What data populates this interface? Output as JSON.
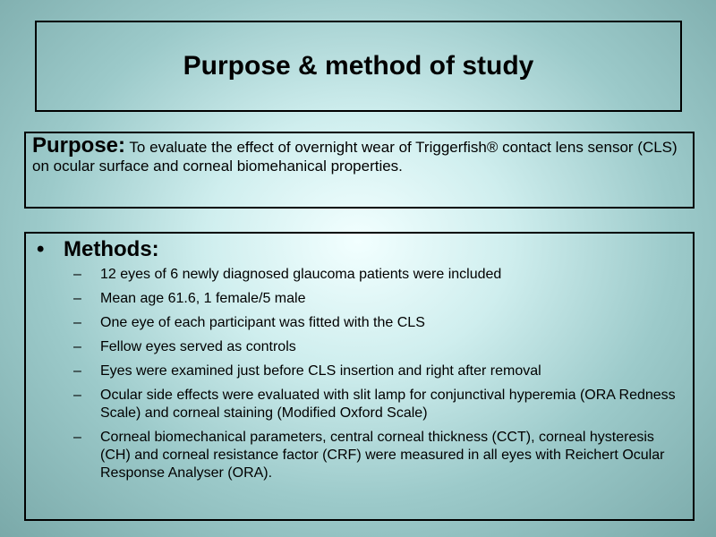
{
  "title": "Purpose & method of study",
  "purpose": {
    "label": "Purpose:",
    "text": " To evaluate the effect of overnight wear of Triggerfish® contact lens sensor (CLS) on ocular surface and corneal biomehanical properties."
  },
  "methods": {
    "bullet": "•",
    "heading": "Methods:",
    "dash": "–",
    "items": [
      "12 eyes of 6 newly diagnosed glaucoma patients were included",
      "Mean age 61.6, 1 female/5 male",
      "One eye of each participant was fitted with the CLS",
      "Fellow eyes served as controls",
      "Eyes were examined just before CLS insertion and right after removal",
      "Ocular side effects were evaluated with slit lamp for conjunctival hyperemia (ORA Redness Scale) and corneal staining (Modified Oxford Scale)",
      "Corneal biomechanical parameters, central corneal thickness (CCT), corneal hysteresis (CH) and corneal resistance factor (CRF) were measured in all eyes with Reichert Ocular Response Analyser (ORA)."
    ]
  }
}
